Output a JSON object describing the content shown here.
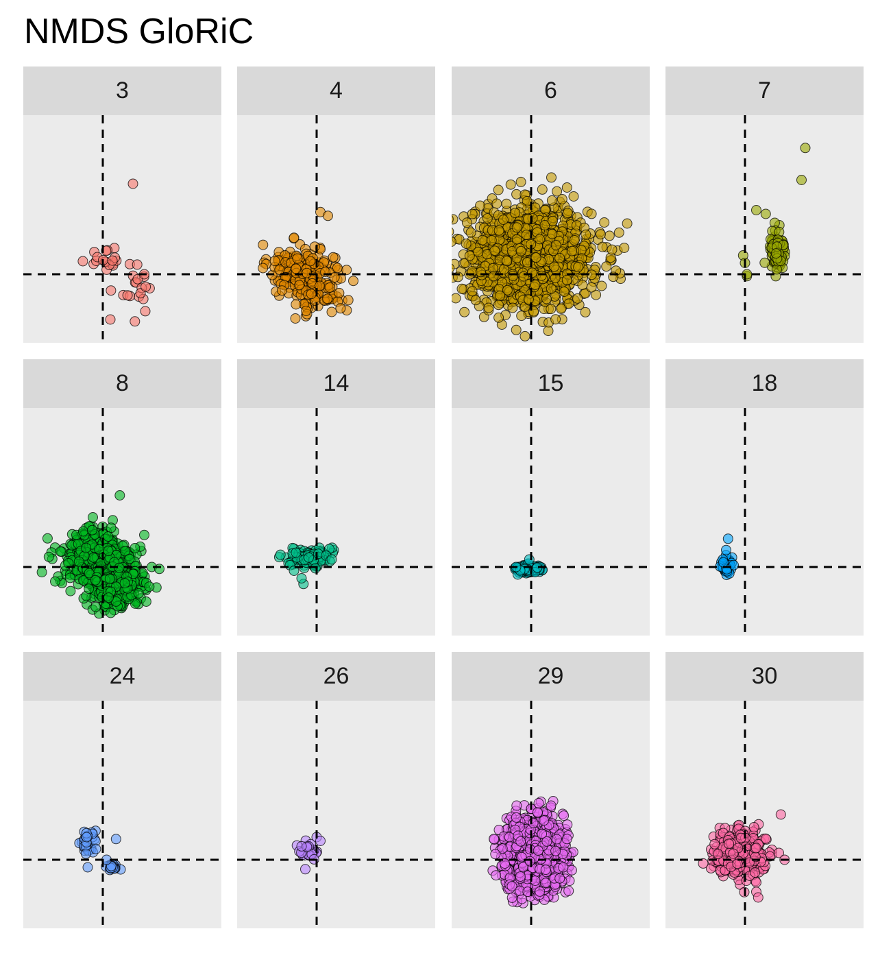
{
  "chart_data": {
    "type": "scatter",
    "title": "NMDS GloRiC",
    "xlabel": "",
    "ylabel": "",
    "reference_lines": {
      "x": 0,
      "y": 0,
      "style": "dashed"
    },
    "point_style": {
      "shape": "circle",
      "outline": "#000000",
      "fill_alpha": 0.6
    },
    "facets": [
      {
        "label": "3",
        "color": "#F8766D",
        "n_points": 36,
        "centers": [
          {
            "x": 0.0,
            "y": 0.45,
            "sx": 0.35,
            "sy": 0.2
          },
          {
            "x": 0.85,
            "y": -0.3,
            "sx": 0.35,
            "sy": 0.45
          }
        ],
        "outliers": [
          [
            0.8,
            2.4
          ],
          [
            1.1,
            0.0
          ],
          [
            0.2,
            -1.2
          ],
          [
            0.85,
            -1.25
          ]
        ]
      },
      {
        "label": "4",
        "color": "#E38900",
        "n_points": 260,
        "centers": [
          {
            "x": -0.6,
            "y": 0.2,
            "sx": 0.4,
            "sy": 0.35
          },
          {
            "x": 0.0,
            "y": -0.3,
            "sx": 0.45,
            "sy": 0.45
          }
        ],
        "outliers": [
          [
            0.1,
            1.65
          ],
          [
            0.3,
            1.55
          ],
          [
            -0.55,
            -0.8
          ],
          [
            0.4,
            -1.0
          ]
        ]
      },
      {
        "label": "6",
        "color": "#C49A00",
        "n_points": 1400,
        "centers": [
          {
            "x": 0.0,
            "y": 0.45,
            "sx": 0.95,
            "sy": 0.75
          }
        ],
        "outliers": [
          [
            0.95,
            2.3
          ],
          [
            1.45,
            1.05
          ],
          [
            -1.05,
            0.9
          ],
          [
            -1.0,
            -0.05
          ]
        ]
      },
      {
        "label": "7",
        "color": "#99A800",
        "n_points": 110,
        "centers": [
          {
            "x": 0.85,
            "y": 0.6,
            "sx": 0.12,
            "sy": 0.35
          }
        ],
        "outliers": [
          [
            1.6,
            3.35
          ],
          [
            1.5,
            2.5
          ],
          [
            0.3,
            1.7
          ],
          [
            0.55,
            1.6
          ],
          [
            -0.05,
            0.5
          ],
          [
            0.0,
            0.3
          ],
          [
            0.05,
            -0.05
          ],
          [
            0.05,
            0.0
          ]
        ]
      },
      {
        "label": "8",
        "color": "#00B81F",
        "n_points": 700,
        "centers": [
          {
            "x": -0.2,
            "y": 0.25,
            "sx": 0.55,
            "sy": 0.45
          },
          {
            "x": 0.35,
            "y": -0.4,
            "sx": 0.4,
            "sy": 0.4
          }
        ],
        "outliers": [
          [
            0.45,
            1.9
          ],
          [
            1.1,
            0.85
          ],
          [
            1.3,
            0.0
          ],
          [
            1.5,
            -0.05
          ],
          [
            0.85,
            0.5
          ]
        ]
      },
      {
        "label": "14",
        "color": "#00C08B",
        "n_points": 110,
        "centers": [
          {
            "x": -0.15,
            "y": 0.25,
            "sx": 0.3,
            "sy": 0.15
          }
        ],
        "outliers": [
          [
            0.25,
            0.3
          ],
          [
            0.35,
            0.15
          ],
          [
            0.4,
            0.2
          ],
          [
            -0.6,
            -0.1
          ],
          [
            -0.35,
            -0.45
          ],
          [
            -0.4,
            -0.3
          ]
        ]
      },
      {
        "label": "15",
        "color": "#00BFC4",
        "n_points": 150,
        "centers": [
          {
            "x": -0.1,
            "y": -0.05,
            "sx": 0.18,
            "sy": 0.06
          }
        ],
        "outliers": [
          [
            -0.4,
            0.0
          ],
          [
            -0.05,
            0.2
          ]
        ]
      },
      {
        "label": "18",
        "color": "#00A5FF",
        "n_points": 60,
        "centers": [
          {
            "x": -0.5,
            "y": 0.05,
            "sx": 0.08,
            "sy": 0.12
          }
        ],
        "outliers": [
          [
            -0.45,
            0.75
          ],
          [
            -0.5,
            0.45
          ],
          [
            -0.3,
            0.05
          ]
        ]
      },
      {
        "label": "24",
        "color": "#619CFF",
        "n_points": 60,
        "centers": [
          {
            "x": -0.35,
            "y": 0.45,
            "sx": 0.15,
            "sy": 0.2
          },
          {
            "x": 0.25,
            "y": -0.2,
            "sx": 0.07,
            "sy": 0.05
          }
        ],
        "outliers": [
          [
            0.35,
            0.55
          ],
          [
            0.1,
            0.0
          ],
          [
            -0.4,
            -0.2
          ]
        ]
      },
      {
        "label": "26",
        "color": "#B983FF",
        "n_points": 30,
        "centers": [
          {
            "x": -0.25,
            "y": 0.25,
            "sx": 0.15,
            "sy": 0.12
          }
        ],
        "outliers": [
          [
            0.0,
            0.6
          ],
          [
            0.1,
            0.5
          ],
          [
            -0.3,
            -0.25
          ]
        ]
      },
      {
        "label": "29",
        "color": "#E76BF3",
        "n_points": 1100,
        "centers": [
          {
            "x": 0.1,
            "y": 0.15,
            "sx": 0.45,
            "sy": 0.55
          }
        ],
        "outliers": [
          [
            0.95,
            0.55
          ],
          [
            0.85,
            -0.2
          ],
          [
            -0.95,
            0.15
          ],
          [
            -0.7,
            -0.1
          ],
          [
            0.2,
            1.5
          ]
        ]
      },
      {
        "label": "30",
        "color": "#FF67A4",
        "n_points": 350,
        "centers": [
          {
            "x": -0.15,
            "y": 0.15,
            "sx": 0.4,
            "sy": 0.35
          }
        ],
        "outliers": [
          [
            0.95,
            1.2
          ],
          [
            1.05,
            0.0
          ],
          [
            0.3,
            -0.6
          ],
          [
            0.3,
            -0.85
          ],
          [
            0.35,
            -1.0
          ]
        ]
      }
    ]
  }
}
